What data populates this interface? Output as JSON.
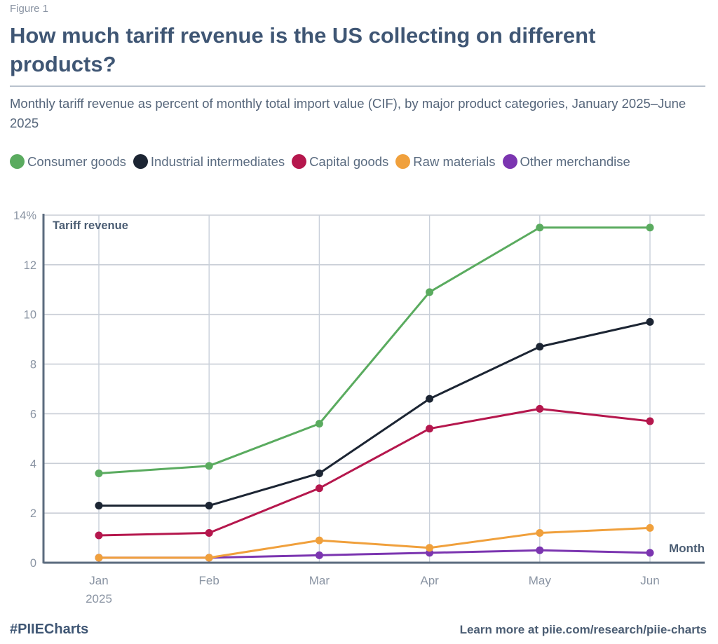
{
  "figure_label": "Figure 1",
  "title": "How much tariff revenue is the US collecting on different products?",
  "subtitle": "Monthly tariff revenue as percent of monthly total import value (CIF), by major product categories, January 2025–June 2025",
  "footer": {
    "hashtag": "#PIIECharts",
    "learn_more": "Learn more at piie.com/research/piie-charts"
  },
  "chart_data": {
    "type": "line",
    "title": "How much tariff revenue is the US collecting on different products?",
    "subtitle": "Monthly tariff revenue as percent of monthly total import value (CIF), by major product categories, January 2025–June 2025",
    "xlabel": "Month",
    "ylabel": "Tariff revenue",
    "x": [
      "Jan",
      "Feb",
      "Mar",
      "Apr",
      "May",
      "Jun"
    ],
    "x_tick_labels": [
      [
        "Jan",
        "2025"
      ],
      [
        "Feb"
      ],
      [
        "Mar"
      ],
      [
        "Apr"
      ],
      [
        "May"
      ],
      [
        "Jun"
      ]
    ],
    "y_ticks": [
      0,
      2,
      4,
      6,
      8,
      10,
      12,
      14
    ],
    "y_tick_labels": [
      "0",
      "2",
      "4",
      "6",
      "8",
      "10",
      "12",
      "14%"
    ],
    "ylim": [
      0,
      14
    ],
    "grid": true,
    "legend_position": "top",
    "series": [
      {
        "name": "Consumer goods",
        "color": "#5aab5f",
        "values": [
          3.6,
          3.9,
          5.6,
          10.9,
          13.5,
          13.5
        ]
      },
      {
        "name": "Industrial intermediates",
        "color": "#1c2533",
        "values": [
          2.3,
          2.3,
          3.6,
          6.6,
          8.7,
          9.7
        ]
      },
      {
        "name": "Capital goods",
        "color": "#b5174d",
        "values": [
          1.1,
          1.2,
          3.0,
          5.4,
          6.2,
          5.7
        ]
      },
      {
        "name": "Raw materials",
        "color": "#f0a03c",
        "values": [
          0.2,
          0.2,
          0.9,
          0.6,
          1.2,
          1.4
        ]
      },
      {
        "name": "Other merchandise",
        "color": "#7b35b0",
        "values": [
          0.2,
          0.2,
          0.3,
          0.4,
          0.5,
          0.4
        ]
      }
    ]
  }
}
